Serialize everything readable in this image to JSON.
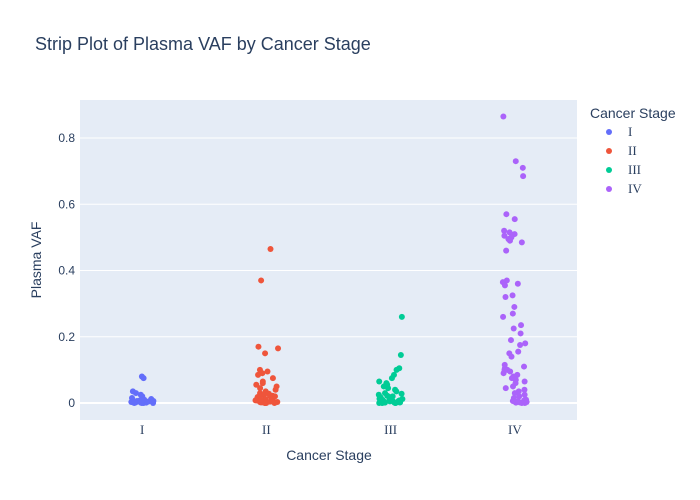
{
  "chart_data": {
    "type": "scatter",
    "title": "Strip Plot of Plasma VAF by Cancer Stage",
    "xlabel": "Cancer Stage",
    "ylabel": "Plasma VAF",
    "categories": [
      "I",
      "II",
      "III",
      "IV"
    ],
    "ylim": [
      -0.05,
      0.9
    ],
    "yticks": [
      0,
      0.2,
      0.4,
      0.6,
      0.8
    ],
    "ytick_labels": [
      "0",
      "0.2",
      "0.4",
      "0.6",
      "0.8"
    ],
    "grid": true,
    "legend": {
      "title": "Cancer Stage",
      "placement": "right"
    },
    "series": [
      {
        "name": "I",
        "color": "#636efa",
        "values": [
          0.08,
          0.075,
          0.035,
          0.03,
          0.025,
          0.02,
          0.015,
          0.012,
          0.01,
          0.008,
          0.006,
          0.005,
          0.004,
          0.003,
          0.002,
          0.002,
          0.001,
          0.001,
          0.0,
          0.0,
          0.0,
          0.003,
          0.004,
          0.006,
          0.002,
          0.001,
          0.0,
          0.005,
          0.007,
          0.009
        ]
      },
      {
        "name": "II",
        "color": "#ef553b",
        "values": [
          0.465,
          0.37,
          0.17,
          0.165,
          0.15,
          0.1,
          0.095,
          0.09,
          0.085,
          0.075,
          0.065,
          0.06,
          0.055,
          0.05,
          0.045,
          0.04,
          0.035,
          0.03,
          0.028,
          0.025,
          0.022,
          0.02,
          0.018,
          0.015,
          0.012,
          0.01,
          0.008,
          0.006,
          0.005,
          0.004,
          0.003,
          0.002,
          0.001,
          0.0,
          0.0,
          0.0,
          0.0,
          0.001,
          0.002,
          0.003,
          0.005,
          0.007,
          0.01,
          0.014,
          0.02
        ]
      },
      {
        "name": "III",
        "color": "#00cc96",
        "values": [
          0.26,
          0.145,
          0.105,
          0.1,
          0.085,
          0.075,
          0.065,
          0.06,
          0.055,
          0.05,
          0.045,
          0.04,
          0.035,
          0.03,
          0.028,
          0.025,
          0.022,
          0.02,
          0.018,
          0.015,
          0.012,
          0.01,
          0.008,
          0.006,
          0.005,
          0.004,
          0.003,
          0.002,
          0.001,
          0.0,
          0.0,
          0.0,
          0.0,
          0.001,
          0.002,
          0.004,
          0.006,
          0.009,
          0.013,
          0.017
        ]
      },
      {
        "name": "IV",
        "color": "#ab63fa",
        "values": [
          0.865,
          0.73,
          0.71,
          0.685,
          0.57,
          0.555,
          0.52,
          0.515,
          0.51,
          0.505,
          0.5,
          0.495,
          0.49,
          0.485,
          0.46,
          0.37,
          0.365,
          0.36,
          0.355,
          0.325,
          0.32,
          0.29,
          0.27,
          0.26,
          0.235,
          0.225,
          0.21,
          0.19,
          0.18,
          0.175,
          0.155,
          0.15,
          0.14,
          0.115,
          0.11,
          0.105,
          0.1,
          0.1,
          0.095,
          0.09,
          0.085,
          0.08,
          0.075,
          0.07,
          0.065,
          0.06,
          0.05,
          0.045,
          0.04,
          0.035,
          0.03,
          0.025,
          0.02,
          0.015,
          0.01,
          0.008,
          0.006,
          0.004,
          0.002,
          0.0,
          0.0,
          0.001,
          0.003,
          0.005
        ]
      }
    ]
  }
}
